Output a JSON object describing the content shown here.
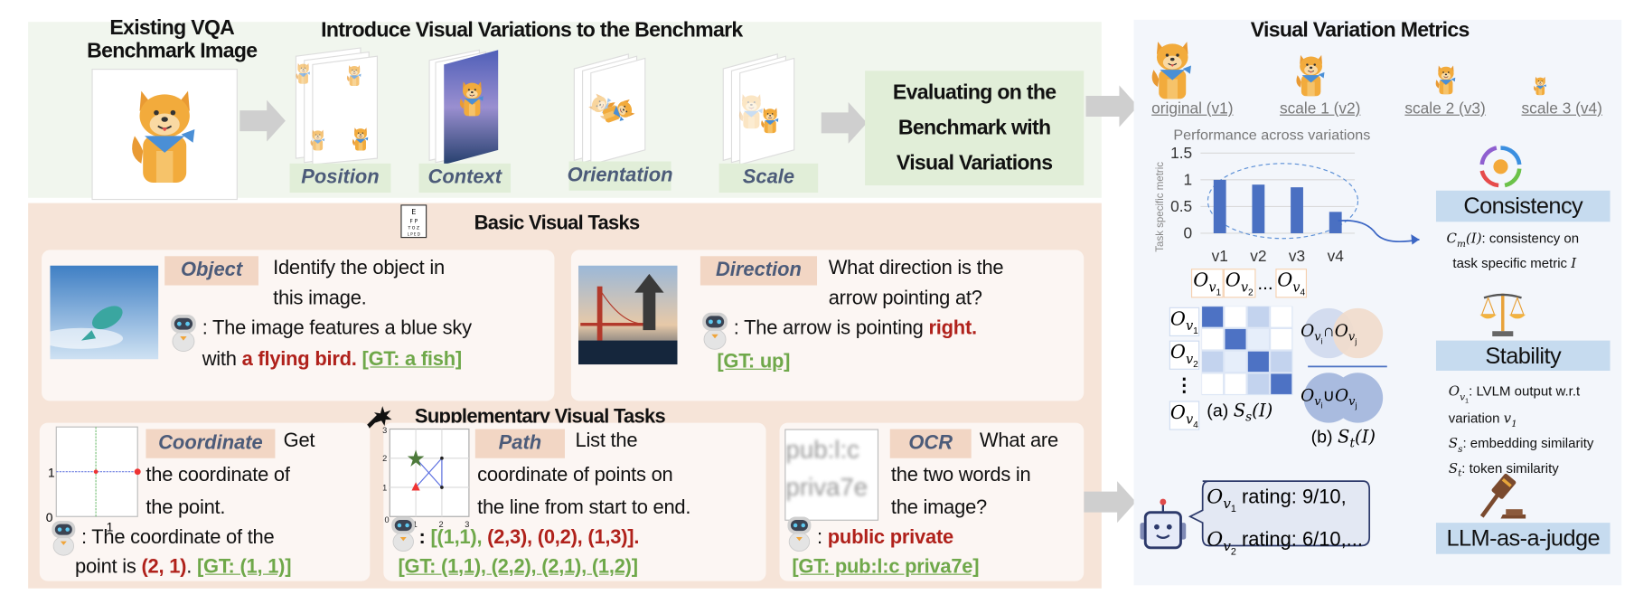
{
  "top": {
    "existing_title": [
      "Existing VQA",
      "Benchmark Image"
    ],
    "variations_title": "Introduce Visual Variations to the Benchmark",
    "variations": [
      "Position",
      "Context",
      "Orientation",
      "Scale"
    ],
    "evaluate": [
      "Evaluating on the",
      "Benchmark with",
      "Visual Variations"
    ]
  },
  "basic": {
    "title": "Basic Visual Tasks",
    "icon": "eye-chart-icon",
    "object": {
      "tag": "Object",
      "question": [
        "Identify the object in",
        "this image."
      ],
      "answer_line1": ": The image features a blue sky",
      "answer_pre": "with ",
      "answer_wrong": "a flying bird.",
      "gt": "[GT: a fish]"
    },
    "direction": {
      "tag": "Direction",
      "question": [
        "What direction is the",
        "arrow pointing at?"
      ],
      "answer_pre": ": The arrow is pointing ",
      "answer_wrong": "right",
      "answer_post": ".",
      "gt": "[GT: up]"
    }
  },
  "supplementary": {
    "title": "Supplementary Visual Tasks",
    "icon": "magic-wand-icon",
    "coordinate": {
      "tag": "Coordinate",
      "question": [
        "Get",
        "the coordinate of",
        "the point."
      ],
      "answer_line1": ": The coordinate of the",
      "answer_pre": "point is ",
      "answer_wrong": "(2, 1)",
      "answer_post": ". ",
      "gt": "[GT: (1, 1)]",
      "plot_ticks": {
        "x": [
          "0",
          "1"
        ],
        "y": [
          "0",
          "1"
        ]
      }
    },
    "path": {
      "tag": "Path",
      "question": [
        "List the",
        "coordinate of points on",
        "the line from start to end."
      ],
      "answer_pre": ": ",
      "answer_right": "[(1,1),",
      "answer_wrong": " (2,3), (0,2), (1,3)].",
      "gt": "[GT: (1,1), (2,2), (2,1), (1,2)]",
      "plot_ticks": [
        "0",
        "1",
        "2",
        "3"
      ]
    },
    "ocr": {
      "tag": "OCR",
      "question": [
        "What are",
        "the two words in",
        "the image?"
      ],
      "image_text": [
        "pub:l:c",
        "priva7e"
      ],
      "answer_pre": ": ",
      "answer_wrong": "public private",
      "gt": "[GT: pub:l:c priva7e]"
    }
  },
  "metrics": {
    "title": "Visual Variation Metrics",
    "scales": [
      "original (v1)",
      "scale 1 (v2)",
      "scale 2 (v3)",
      "scale 3 (v4)"
    ],
    "consistency": {
      "label": "Consistency",
      "desc_math": {
        "base": "C",
        "sub": "m",
        "arg": "(I)"
      },
      "desc": [
        ": consistency on",
        "task specific metric "
      ],
      "desc_var": "I"
    },
    "stability": {
      "label": "Stability",
      "notes": [
        {
          "math": {
            "base": "O",
            "sub": "v",
            "subsub": "1"
          },
          "text": ": LVLM output w.r.t"
        },
        {
          "text": "variation ",
          "math": {
            "base": "v",
            "sub": "1"
          }
        },
        {
          "math": {
            "base": "S",
            "sub": "s"
          },
          "text": ": embedding similarity"
        },
        {
          "math": {
            "base": "S",
            "sub": "t"
          },
          "text": ": token similarity"
        }
      ],
      "matrix_header": [
        {
          "base": "O",
          "sub": "v",
          "subsub": "1"
        },
        {
          "base": "O",
          "sub": "v",
          "subsub": "2"
        },
        {
          "base": "O",
          "sub": "v",
          "subsub": "4"
        }
      ],
      "ellipsis": "...",
      "vdots": "⋮",
      "heatmap_levels": [
        [
          3,
          0,
          2,
          0
        ],
        [
          0,
          3,
          1,
          0
        ],
        [
          2,
          1,
          3,
          2
        ],
        [
          0,
          0,
          2,
          3
        ]
      ],
      "caption_a": "(a) ",
      "caption_a_math": {
        "base": "S",
        "sub": "s",
        "arg": "(I)"
      },
      "caption_b": "(b) ",
      "caption_b_math": {
        "base": "S",
        "sub": "t",
        "arg": "(I)"
      },
      "intersection_symbol": "∩",
      "union_symbol": "∪",
      "oi": {
        "base": "O",
        "sub": "v",
        "subsub": "i"
      },
      "oj": {
        "base": "O",
        "sub": "v",
        "subsub": "j"
      }
    },
    "judge": {
      "label": "LLM-as-a-judge",
      "ratings": [
        {
          "math": {
            "base": "O",
            "sub": "v",
            "subsub": "1"
          },
          "text": " rating: 9/10,"
        },
        {
          "math": {
            "base": "O",
            "sub": "v",
            "subsub": "2"
          },
          "text": " rating: 6/10,..."
        }
      ]
    }
  },
  "chart_data": {
    "type": "bar",
    "title": "Performance across variations",
    "ylabel": "Task specific metric",
    "xlabel": "",
    "categories": [
      "v1",
      "v2",
      "v3",
      "v4"
    ],
    "values": [
      1.0,
      0.91,
      0.86,
      0.4
    ],
    "ylim": [
      0,
      1.5
    ],
    "yticks": [
      "0",
      "0.5",
      "1",
      "1.5"
    ],
    "grid": true,
    "bar_color": "#4a70c2"
  },
  "colors": {
    "wrong": "#b0211b",
    "ground_truth": "#6fa84a",
    "tag": "#f2d6c4",
    "metric_box": "#c6dbef"
  }
}
